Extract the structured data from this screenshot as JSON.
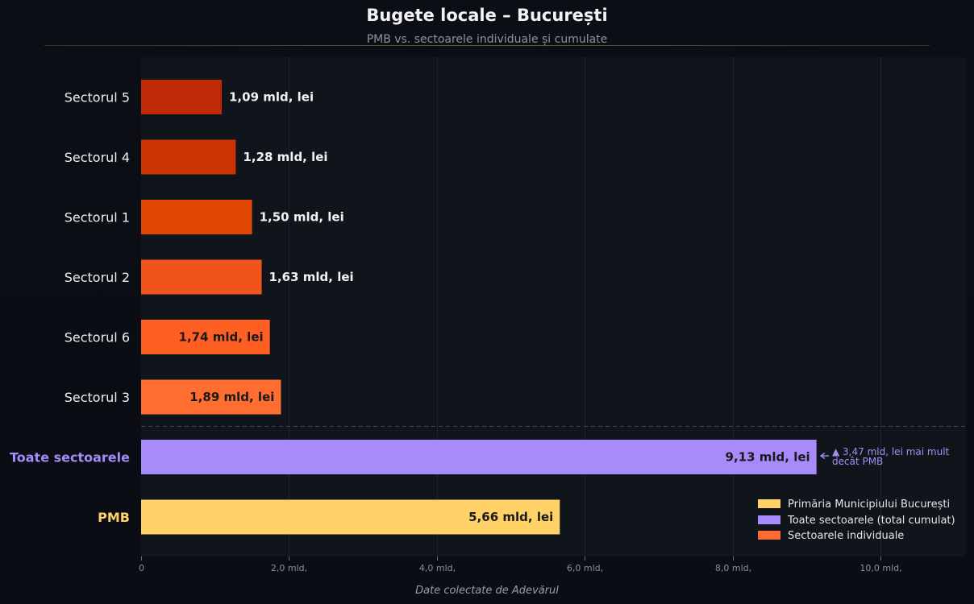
{
  "header": {
    "title": "Bugete locale – București",
    "subtitle": "PMB vs. sectoarele individuale și cumulate"
  },
  "footer": {
    "source": "Date colectate de Adevărul"
  },
  "annotation": {
    "line1": "▲ 3,47 mld, lei mai mult",
    "line2": "decât PMB",
    "color": "#a48cf0"
  },
  "colors": {
    "background": "#0a0e14",
    "plot_background": "#10151c",
    "pmb": "#ffd166",
    "total": "#a78bfa",
    "sector_gradient": [
      "#c02a06",
      "#cc3305",
      "#e24605",
      "#f0541a",
      "#ff5f22",
      "#ff6d30"
    ]
  },
  "chart_data": {
    "type": "bar",
    "orientation": "horizontal",
    "title": "Bugete locale – București",
    "subtitle": "PMB vs. sectoarele individuale și cumulate",
    "xlabel": "",
    "ylabel": "",
    "xlim": [
      0,
      11.15
    ],
    "x_ticks": [
      0,
      2,
      4,
      6,
      8,
      10
    ],
    "x_tick_labels": [
      "0",
      "2,0 mld,",
      "4,0 mld,",
      "6,0 mld,",
      "8,0 mld,",
      "10,0 mld,"
    ],
    "grid": true,
    "legend_position": "bottom-right",
    "categories": [
      "Sectorul 5",
      "Sectorul 4",
      "Sectorul 1",
      "Sectorul 2",
      "Sectorul 6",
      "Sectorul 3",
      "Toate sectoarele",
      "PMB"
    ],
    "values": [
      1.09,
      1.28,
      1.5,
      1.63,
      1.74,
      1.89,
      9.13,
      5.66
    ],
    "value_labels": [
      "1,09 mld, lei",
      "1,28 mld, lei",
      "1,50 mld, lei",
      "1,63 mld, lei",
      "1,74 mld, lei",
      "1,89 mld, lei",
      "9,13 mld, lei",
      "5,66 mld, lei"
    ],
    "groups": [
      "sector",
      "sector",
      "sector",
      "sector",
      "sector",
      "sector",
      "total",
      "pmb"
    ],
    "legend": [
      {
        "label": "Primăria Municipiului București",
        "color": "#ffd166"
      },
      {
        "label": "Toate sectoarele (total cumulat)",
        "color": "#a78bfa"
      },
      {
        "label": "Sectoarele individuale",
        "color": "#ff6b35"
      }
    ]
  }
}
